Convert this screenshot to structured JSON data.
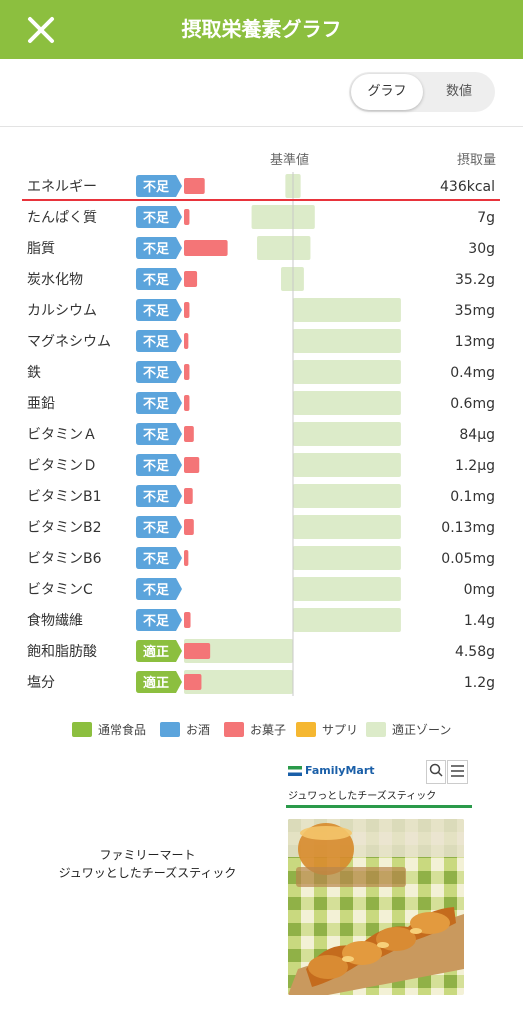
{
  "header": {
    "title": "摂取栄養素グラフ"
  },
  "toggle": {
    "graph_label": "グラフ",
    "values_label": "数値",
    "selected": "graph"
  },
  "columns": {
    "standard_label": "基準値",
    "intake_label": "摂取量"
  },
  "status_labels": {
    "insufficient": "不足",
    "adequate": "適正"
  },
  "colors": {
    "header": "#8cbf3f",
    "status_insufficient": "#5ba4dc",
    "status_adequate": "#8cbf3f",
    "intake_bar": "#f47577",
    "adequate_zone": "#dcebc9",
    "highlight_line": "#e8333b"
  },
  "chart_data": {
    "type": "bar",
    "scale": "percent of standard value; 100 = standard line",
    "nutrients": [
      {
        "name": "エネルギー",
        "status": "insufficient",
        "intake_text": "436kcal",
        "intake_pct": 19,
        "zone_pct": [
          93,
          107
        ]
      },
      {
        "name": "たんぱく質",
        "status": "insufficient",
        "intake_text": "7g",
        "intake_pct": 5,
        "zone_pct": [
          62,
          120
        ]
      },
      {
        "name": "脂質",
        "status": "insufficient",
        "intake_text": "30g",
        "intake_pct": 40,
        "zone_pct": [
          67,
          116
        ]
      },
      {
        "name": "炭水化物",
        "status": "insufficient",
        "intake_text": "35.2g",
        "intake_pct": 12,
        "zone_pct": [
          89,
          110
        ]
      },
      {
        "name": "カルシウム",
        "status": "insufficient",
        "intake_text": "35mg",
        "intake_pct": 5,
        "zone_pct": [
          100,
          199
        ]
      },
      {
        "name": "マグネシウム",
        "status": "insufficient",
        "intake_text": "13mg",
        "intake_pct": 4,
        "zone_pct": [
          100,
          199
        ]
      },
      {
        "name": "鉄",
        "status": "insufficient",
        "intake_text": "0.4mg",
        "intake_pct": 5,
        "zone_pct": [
          100,
          199
        ]
      },
      {
        "name": "亜鉛",
        "status": "insufficient",
        "intake_text": "0.6mg",
        "intake_pct": 5,
        "zone_pct": [
          100,
          199
        ]
      },
      {
        "name": "ビタミンＡ",
        "status": "insufficient",
        "intake_text": "84μg",
        "intake_pct": 9,
        "zone_pct": [
          100,
          199
        ]
      },
      {
        "name": "ビタミンＤ",
        "status": "insufficient",
        "intake_text": "1.2μg",
        "intake_pct": 14,
        "zone_pct": [
          100,
          199
        ]
      },
      {
        "name": "ビタミンB1",
        "status": "insufficient",
        "intake_text": "0.1mg",
        "intake_pct": 8,
        "zone_pct": [
          100,
          199
        ]
      },
      {
        "name": "ビタミンB2",
        "status": "insufficient",
        "intake_text": "0.13mg",
        "intake_pct": 9,
        "zone_pct": [
          100,
          199
        ]
      },
      {
        "name": "ビタミンB6",
        "status": "insufficient",
        "intake_text": "0.05mg",
        "intake_pct": 4,
        "zone_pct": [
          100,
          199
        ]
      },
      {
        "name": "ビタミンC",
        "status": "insufficient",
        "intake_text": "0mg",
        "intake_pct": 0,
        "zone_pct": [
          100,
          199
        ]
      },
      {
        "name": "食物繊維",
        "status": "insufficient",
        "intake_text": "1.4g",
        "intake_pct": 6,
        "zone_pct": [
          100,
          199
        ]
      },
      {
        "name": "飽和脂肪酸",
        "status": "adequate",
        "intake_text": "4.58g",
        "intake_pct": 24,
        "zone_pct": [
          0,
          100
        ]
      },
      {
        "name": "塩分",
        "status": "adequate",
        "intake_text": "1.2g",
        "intake_pct": 16,
        "zone_pct": [
          0,
          100
        ]
      }
    ]
  },
  "legend": [
    {
      "label": "通常食品",
      "color": "#8cbf3f"
    },
    {
      "label": "お酒",
      "color": "#5ba4dc"
    },
    {
      "label": "お菓子",
      "color": "#f47577"
    },
    {
      "label": "サプリ",
      "color": "#f5b731"
    },
    {
      "label": "適正ゾーン",
      "color": "#dcebc9"
    }
  ],
  "product": {
    "maker": "ファミリーマート",
    "name": "ジュワッとしたチーズスティック",
    "card_brand": "FamilyMart",
    "card_title": "ジュワっとしたチーズスティック"
  }
}
